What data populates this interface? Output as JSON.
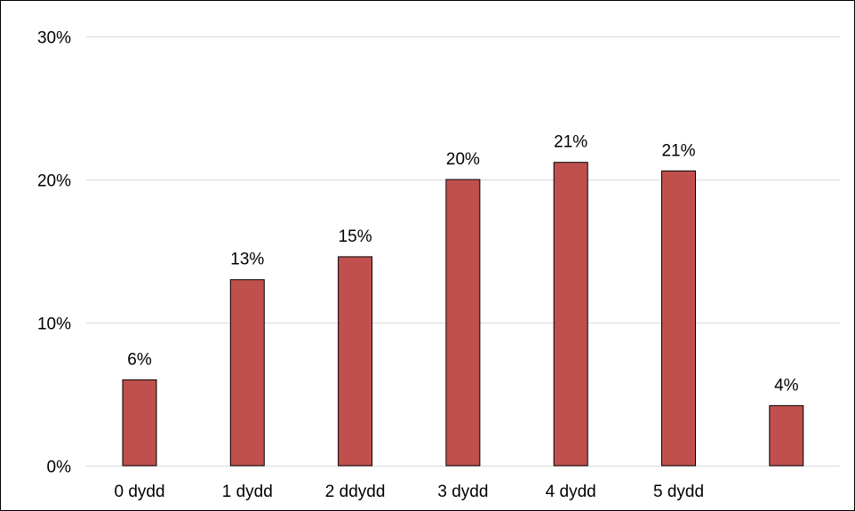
{
  "chart_data": {
    "type": "bar",
    "title": "",
    "xlabel": "",
    "ylabel": "",
    "categories": [
      "0 dydd",
      "1 dydd",
      "2 ddydd",
      "3 dydd",
      "4 dydd",
      "5 dydd",
      ""
    ],
    "values": [
      6,
      13,
      14.6,
      20,
      21.2,
      20.6,
      4.2
    ],
    "data_labels": [
      "6%",
      "13%",
      "15%",
      "20%",
      "21%",
      "21%",
      "4%"
    ],
    "ylim": [
      0,
      30
    ],
    "yticks": [
      0,
      10,
      20,
      30
    ],
    "ytick_labels": [
      "0%",
      "10%",
      "20%",
      "30%"
    ],
    "grid": true,
    "legend": "none",
    "colors": {
      "bar": "#c0504d",
      "bar_border": "#000000",
      "grid": "#d9d9d9",
      "text": "#000000"
    }
  }
}
